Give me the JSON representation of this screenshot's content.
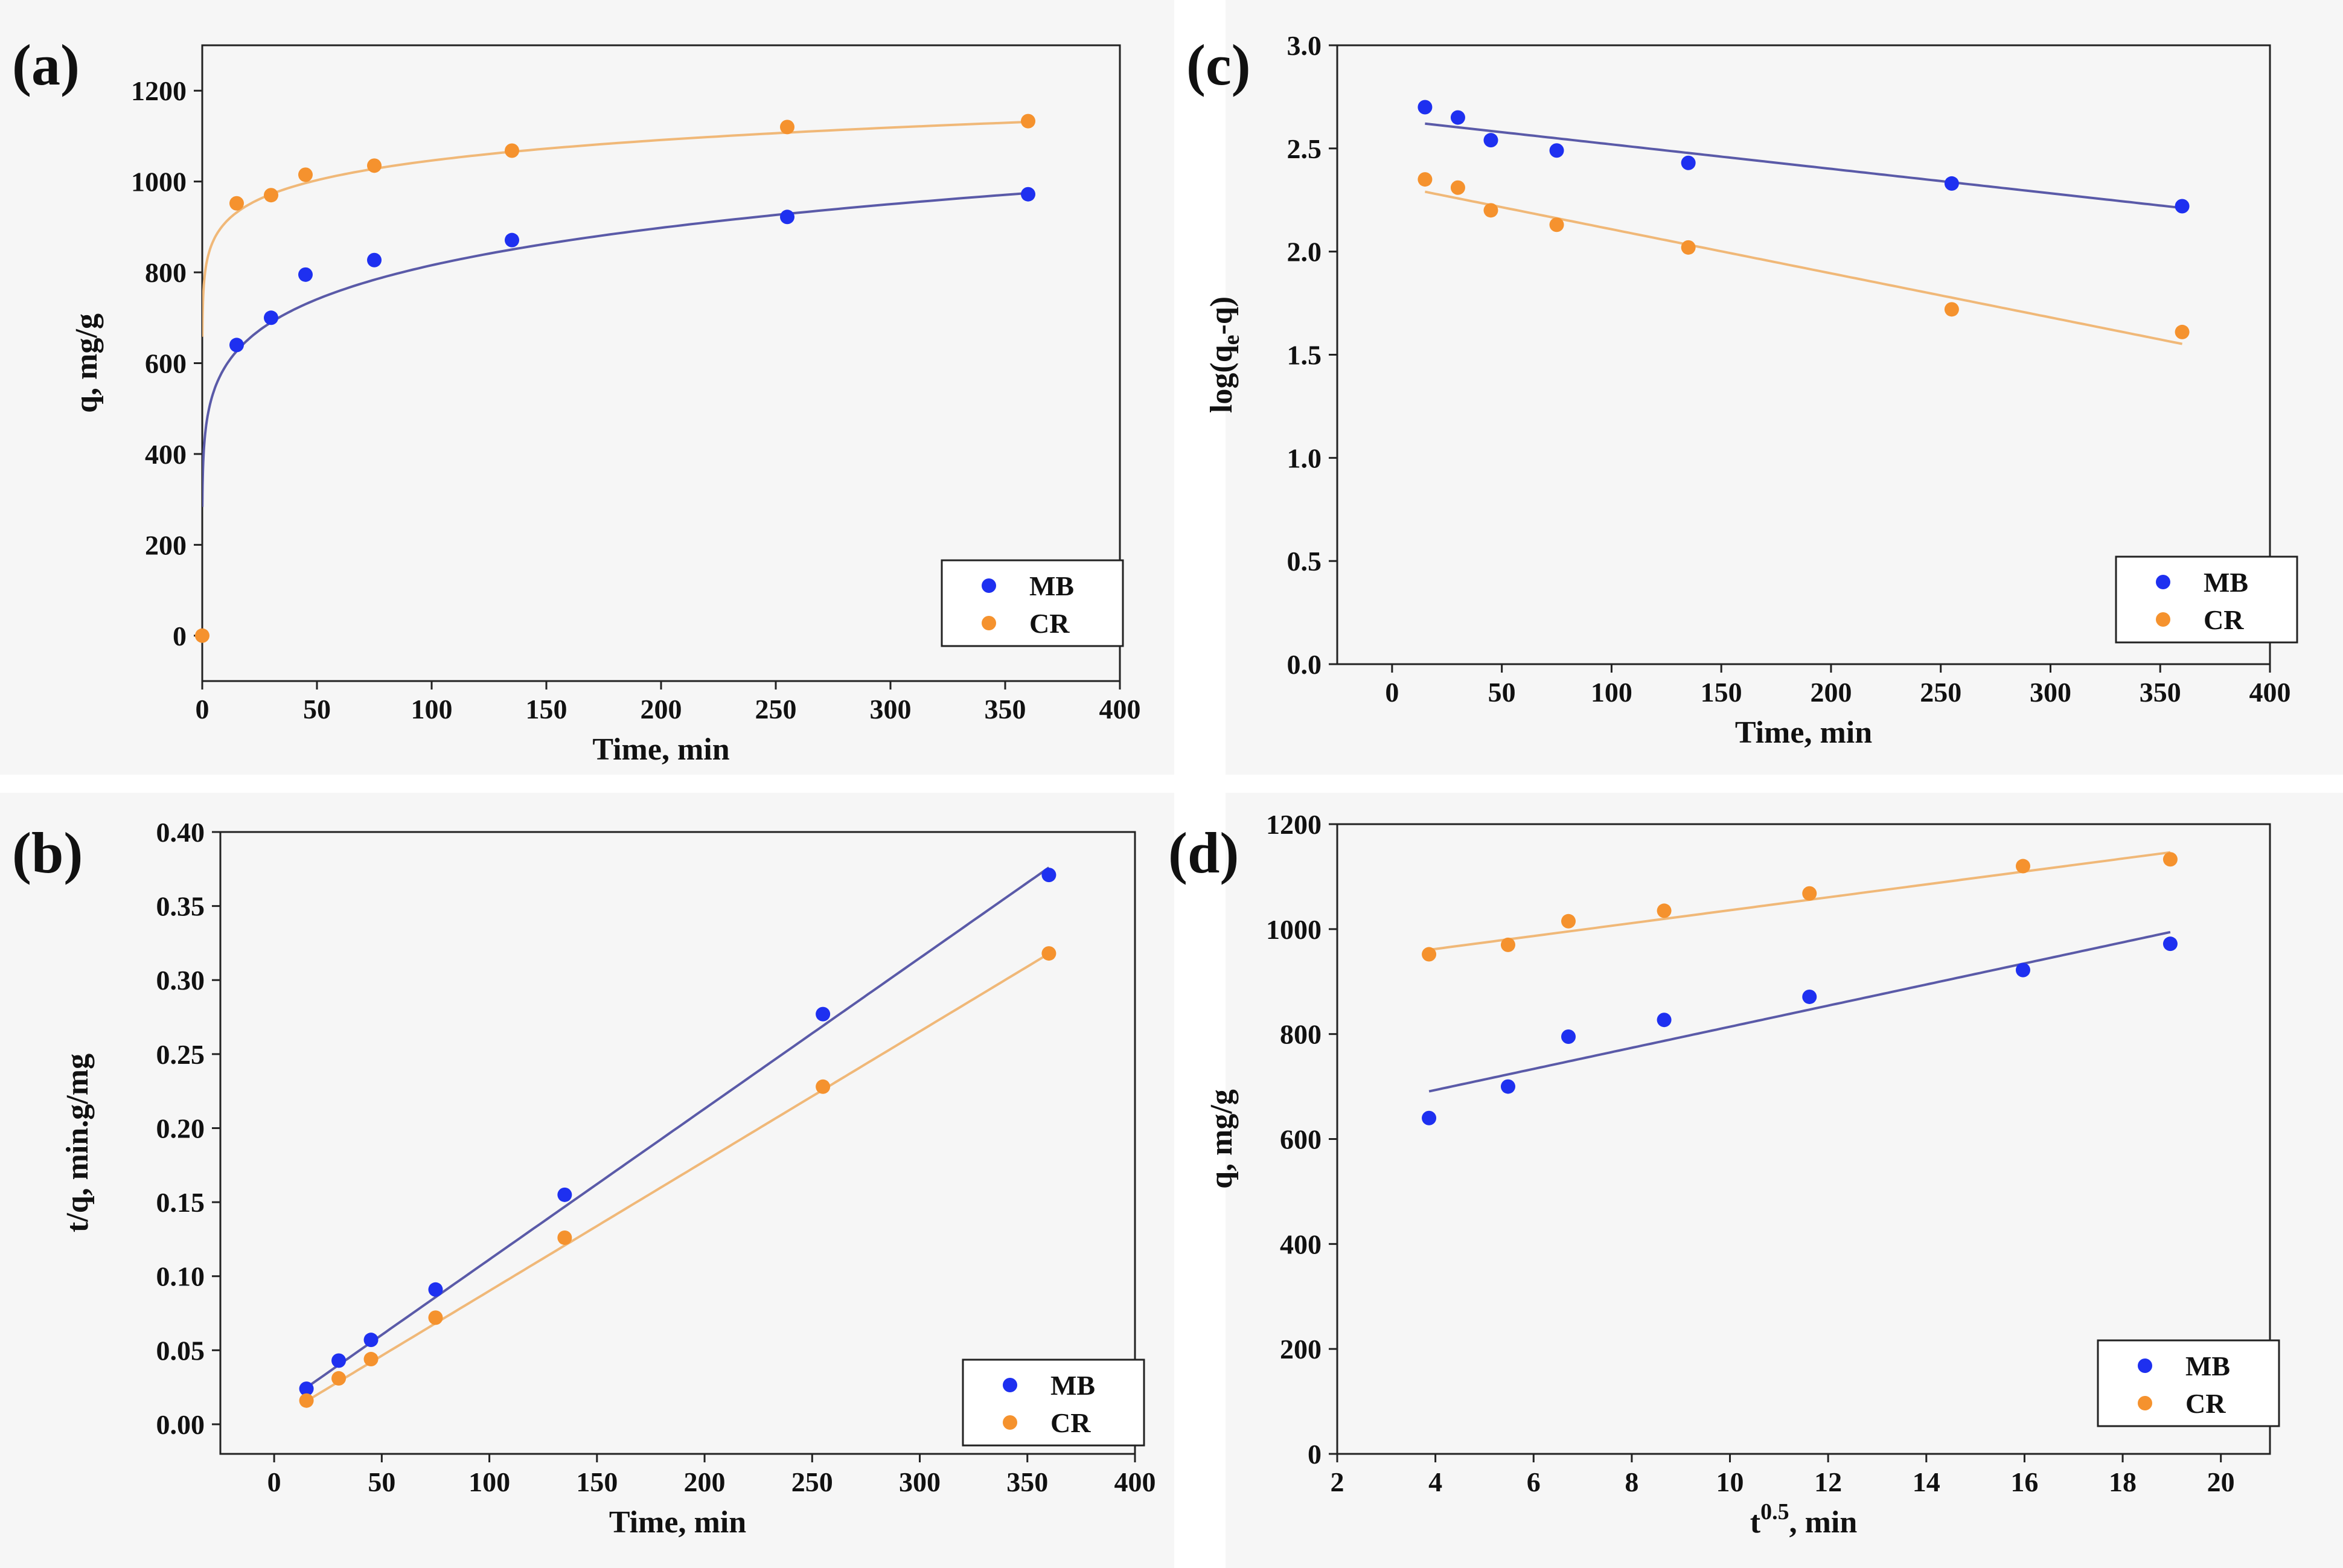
{
  "colors": {
    "MB": "#1e30f0",
    "CR": "#f5922e",
    "MB_line": "#5a5aa8",
    "CR_line": "#f0b878",
    "axis": "#222222"
  },
  "chart_data": [
    {
      "id": "a",
      "panel_label": "(a)",
      "type": "scatter",
      "xlabel": "Time, min",
      "ylabel": "q, mg/g",
      "xlim": [
        0,
        400
      ],
      "ylim": [
        -100,
        1300
      ],
      "xticks": [
        0,
        50,
        100,
        150,
        200,
        250,
        300,
        350,
        400
      ],
      "yticks": [
        0,
        200,
        400,
        600,
        800,
        1000,
        1200
      ],
      "ytick_labels": [
        "0",
        "200",
        "400",
        "600",
        "800",
        "1000",
        "1200"
      ],
      "legend": [
        "MB",
        "CR"
      ],
      "legend_position": "bottom-right",
      "series": [
        {
          "name": "MB",
          "x": [
            15,
            30,
            45,
            75,
            135,
            255,
            360
          ],
          "y": [
            640,
            700,
            795,
            827,
            871,
            922,
            972
          ],
          "fit": {
            "kind": "power",
            "a": 430,
            "b": 0.139,
            "x0": 0.05,
            "x1": 360
          }
        },
        {
          "name": "CR",
          "x": [
            0,
            15,
            30,
            45,
            75,
            135,
            255,
            360
          ],
          "y": [
            0,
            952,
            970,
            1015,
            1035,
            1068,
            1120,
            1133
          ],
          "fit": {
            "kind": "power",
            "a": 790,
            "b": 0.061,
            "x0": 0.05,
            "x1": 360
          }
        }
      ]
    },
    {
      "id": "b",
      "panel_label": "(b)",
      "type": "scatter",
      "xlabel": "Time, min",
      "ylabel": "t/q, min.g/mg",
      "xlim": [
        -25,
        400
      ],
      "ylim": [
        -0.02,
        0.4
      ],
      "xticks": [
        0,
        50,
        100,
        150,
        200,
        250,
        300,
        350,
        400
      ],
      "yticks": [
        0,
        0.05,
        0.1,
        0.15,
        0.2,
        0.25,
        0.3,
        0.35,
        0.4
      ],
      "ytick_labels": [
        "0.00",
        "0.05",
        "0.10",
        "0.15",
        "0.20",
        "0.25",
        "0.30",
        "0.35",
        "0.40"
      ],
      "legend": [
        "MB",
        "CR"
      ],
      "legend_position": "bottom-right",
      "series": [
        {
          "name": "MB",
          "x": [
            15,
            30,
            45,
            75,
            135,
            255,
            360
          ],
          "y": [
            0.024,
            0.043,
            0.057,
            0.091,
            0.155,
            0.277,
            0.371
          ],
          "fit": {
            "kind": "linear",
            "m": 0.001018,
            "c": 0.0095,
            "x0": 15,
            "x1": 360
          }
        },
        {
          "name": "CR",
          "x": [
            15,
            30,
            45,
            75,
            135,
            255,
            360
          ],
          "y": [
            0.016,
            0.031,
            0.044,
            0.072,
            0.126,
            0.228,
            0.318
          ],
          "fit": {
            "kind": "linear",
            "m": 0.000876,
            "c": 0.0025,
            "x0": 15,
            "x1": 360
          }
        }
      ]
    },
    {
      "id": "c",
      "panel_label": "(c)",
      "type": "scatter",
      "xlabel": "Time, min",
      "ylabel": "log(qe-q)",
      "xlim": [
        -25,
        400
      ],
      "ylim": [
        0,
        3.0
      ],
      "xticks": [
        0,
        50,
        100,
        150,
        200,
        250,
        300,
        350,
        400
      ],
      "yticks": [
        0,
        0.5,
        1.0,
        1.5,
        2.0,
        2.5,
        3.0
      ],
      "ytick_labels": [
        "0.0",
        "0.5",
        "1.0",
        "1.5",
        "2.0",
        "2.5",
        "3.0"
      ],
      "legend": [
        "MB",
        "CR"
      ],
      "legend_position": "bottom-right",
      "series": [
        {
          "name": "MB",
          "x": [
            15,
            30,
            45,
            75,
            135,
            255,
            360
          ],
          "y": [
            2.7,
            2.65,
            2.54,
            2.49,
            2.43,
            2.33,
            2.22
          ],
          "fit": {
            "kind": "linear",
            "m": -0.001185,
            "c": 2.638,
            "x0": 15,
            "x1": 360
          }
        },
        {
          "name": "CR",
          "x": [
            15,
            30,
            45,
            75,
            135,
            255,
            360
          ],
          "y": [
            2.35,
            2.31,
            2.2,
            2.13,
            2.02,
            1.72,
            1.61
          ],
          "fit": {
            "kind": "linear",
            "m": -0.002138,
            "c": 2.322,
            "x0": 15,
            "x1": 360
          }
        }
      ]
    },
    {
      "id": "d",
      "panel_label": "(d)",
      "type": "scatter",
      "xlabel": "t0.5, min",
      "xlabel_base": "t",
      "xlabel_sup": "0.5",
      "xlabel_rest": ", min",
      "ylabel": "q, mg/g",
      "xlim": [
        2,
        21
      ],
      "ylim": [
        0,
        1200
      ],
      "xticks": [
        2,
        4,
        6,
        8,
        10,
        12,
        14,
        16,
        18,
        20
      ],
      "yticks": [
        0,
        200,
        400,
        600,
        800,
        1000,
        1200
      ],
      "ytick_labels": [
        "0",
        "200",
        "400",
        "600",
        "800",
        "1000",
        "1200"
      ],
      "legend": [
        "MB",
        "CR"
      ],
      "legend_position": "bottom-right",
      "series": [
        {
          "name": "MB",
          "x": [
            3.87,
            5.48,
            6.71,
            8.66,
            11.62,
            15.97,
            18.97
          ],
          "y": [
            640,
            700,
            795,
            827,
            871,
            922,
            972
          ],
          "fit": {
            "kind": "linear",
            "m": 20.1,
            "c": 613,
            "x0": 3.87,
            "x1": 18.97
          }
        },
        {
          "name": "CR",
          "x": [
            3.87,
            5.48,
            6.71,
            8.66,
            11.62,
            15.97,
            18.97
          ],
          "y": [
            952,
            970,
            1015,
            1035,
            1068,
            1120,
            1133
          ],
          "fit": {
            "kind": "linear",
            "m": 12.3,
            "c": 913,
            "x0": 3.87,
            "x1": 18.97
          }
        }
      ]
    }
  ]
}
